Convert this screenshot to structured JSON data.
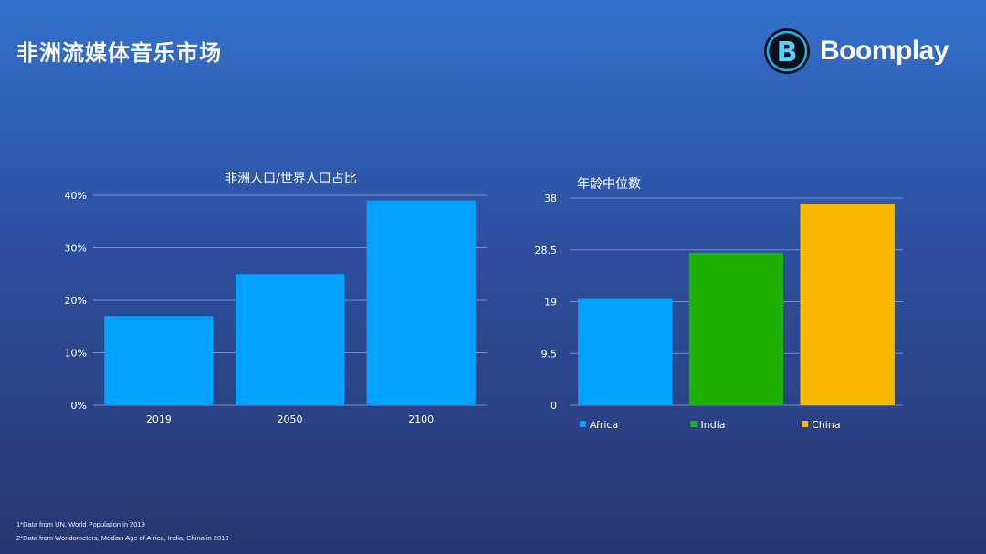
{
  "slide": {
    "title": "非洲流媒体音乐市场"
  },
  "brand": {
    "name": "Boomplay",
    "logo_letter": "B",
    "accent": "#18b8e6"
  },
  "footnotes": [
    "1*Data from UN, World Population in 2019",
    "2*Data from Worldometers, Median Age of Africa, India, China in 2019"
  ],
  "chart_data": [
    {
      "type": "bar",
      "title": "非洲人口/世界人口占比",
      "categories": [
        "2019",
        "2050",
        "2100"
      ],
      "values": [
        17,
        25,
        39
      ],
      "unit": "%",
      "ylim": [
        0,
        40
      ],
      "yticks": [
        "0%",
        "10%",
        "20%",
        "30%",
        "40%"
      ],
      "ytick_values": [
        0,
        10,
        20,
        30,
        40
      ],
      "grid": true,
      "color": "#00a2ff"
    },
    {
      "type": "bar",
      "title": "年龄中位数",
      "categories": [
        "Africa",
        "India",
        "China"
      ],
      "values": [
        19.5,
        28,
        37
      ],
      "ylim": [
        0,
        38
      ],
      "yticks": [
        "0",
        "9.5",
        "19",
        "28.5",
        "38"
      ],
      "ytick_values": [
        0,
        9.5,
        19,
        28.5,
        38
      ],
      "grid": true,
      "legend": "bottom",
      "series": [
        {
          "name": "Africa",
          "color": "#00a2ff"
        },
        {
          "name": "India",
          "color": "#1db100"
        },
        {
          "name": "China",
          "color": "#f8ba00"
        }
      ]
    }
  ]
}
